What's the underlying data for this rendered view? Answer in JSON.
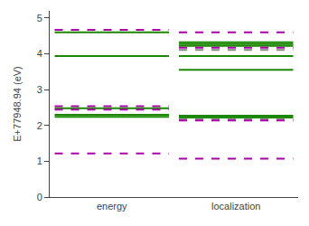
{
  "chart_data": {
    "type": "levels",
    "categories": [
      "energy",
      "localization"
    ],
    "ylabel": "E+77948.94 (eV)",
    "ylim": [
      0,
      5.2
    ],
    "yticks": [
      0,
      1,
      2,
      3,
      4,
      5
    ],
    "grid": false,
    "series": [
      {
        "color": "#1a8800",
        "line_style": "solid",
        "values": [
          4.6,
          null
        ]
      },
      {
        "color": "#aa00aa",
        "line_style": "dashed",
        "values": [
          4.67,
          null
        ]
      },
      {
        "color": "#1a8800",
        "line_style": "solid",
        "values": [
          3.94,
          null
        ]
      },
      {
        "color": "#aa00aa",
        "line_style": "dashed",
        "values": [
          2.54,
          null
        ]
      },
      {
        "color": "#1a8800",
        "line_style": "solid",
        "values": [
          2.3,
          null
        ]
      },
      {
        "color": "#1a8800",
        "line_style": "solid",
        "values": [
          2.24,
          null
        ]
      },
      {
        "color": "#1a8800",
        "line_style": "solid",
        "values": [
          2.48,
          null
        ]
      },
      {
        "color": "#aa00aa",
        "line_style": "dashed",
        "values": [
          2.44,
          null
        ]
      },
      {
        "color": "#aa00aa",
        "line_style": "dashed",
        "values": [
          1.22,
          null
        ]
      },
      {
        "color": "#aa00aa",
        "line_style": "dashed",
        "values": [
          null,
          4.6
        ]
      },
      {
        "color": "#1a8800",
        "line_style": "solid",
        "values": [
          null,
          4.32
        ]
      },
      {
        "color": "#1a8800",
        "line_style": "solid",
        "values": [
          null,
          4.27
        ]
      },
      {
        "color": "#1a8800",
        "line_style": "solid",
        "values": [
          null,
          4.22
        ]
      },
      {
        "color": "#aa00aa",
        "line_style": "dashed",
        "values": [
          null,
          4.17
        ]
      },
      {
        "color": "#888888",
        "line_style": "dashed",
        "values": [
          null,
          4.11
        ]
      },
      {
        "color": "#1a8800",
        "line_style": "solid",
        "values": [
          null,
          3.94
        ]
      },
      {
        "color": "#1a8800",
        "line_style": "solid",
        "values": [
          null,
          3.55
        ]
      },
      {
        "color": "#1a8800",
        "line_style": "solid",
        "values": [
          null,
          2.27
        ]
      },
      {
        "color": "#1a8800",
        "line_style": "solid",
        "values": [
          null,
          2.22
        ]
      },
      {
        "color": "#888888",
        "line_style": "dashed",
        "values": [
          null,
          2.18
        ]
      },
      {
        "color": "#aa00aa",
        "line_style": "dashed",
        "values": [
          null,
          2.14
        ]
      },
      {
        "color": "#aa00aa",
        "line_style": "dashed",
        "values": [
          null,
          1.07
        ]
      }
    ]
  }
}
